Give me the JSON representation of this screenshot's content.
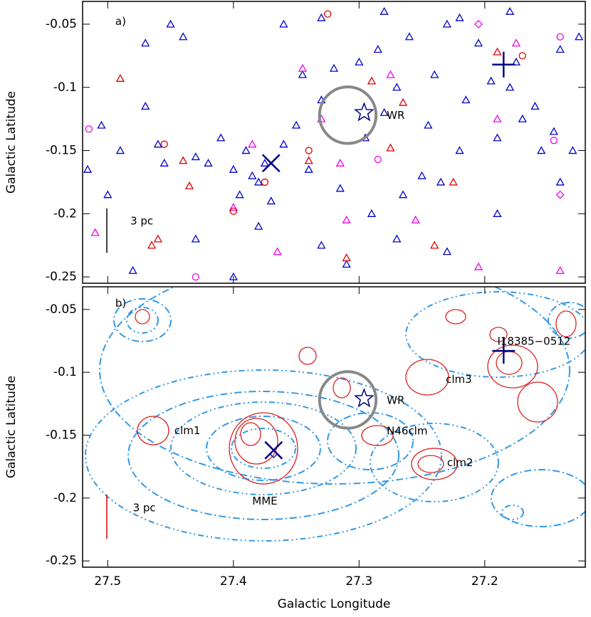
{
  "chart_data": [
    {
      "type": "scatter",
      "ylabel": "Galactic Latitude",
      "xlim": [
        27.52,
        27.12
      ],
      "ylim": [
        -0.255,
        -0.032
      ],
      "xticks": [
        27.5,
        27.4,
        27.3,
        27.2
      ],
      "yticks": [
        -0.05,
        -0.1,
        -0.15,
        -0.2,
        -0.25
      ],
      "series": [
        {
          "marker": "triangle",
          "color": "#0000cc",
          "x": [
            27.516,
            27.505,
            27.49,
            27.47,
            27.47,
            27.46,
            27.455,
            27.45,
            27.44,
            27.43,
            27.42,
            27.41,
            27.4,
            27.395,
            27.39,
            27.385,
            27.38,
            27.375,
            27.37,
            27.36,
            27.35,
            27.345,
            27.34,
            27.33,
            27.32,
            27.315,
            27.3,
            27.295,
            27.29,
            27.285,
            27.28,
            27.27,
            27.265,
            27.26,
            27.25,
            27.245,
            27.24,
            27.235,
            27.23,
            27.22,
            27.215,
            27.205,
            27.195,
            27.19,
            27.18,
            27.175,
            27.17,
            27.16,
            27.155,
            27.145,
            27.14,
            27.13,
            27.125,
            27.5,
            27.48,
            27.43,
            27.4,
            27.38,
            27.33,
            27.31,
            27.27,
            27.23,
            27.19,
            27.14,
            27.36,
            27.33,
            27.28,
            27.22,
            27.18
          ],
          "y": [
            -0.165,
            -0.13,
            -0.15,
            -0.065,
            -0.115,
            -0.145,
            -0.16,
            -0.05,
            -0.06,
            -0.155,
            -0.16,
            -0.14,
            -0.165,
            -0.185,
            -0.15,
            -0.17,
            -0.175,
            -0.16,
            -0.19,
            -0.145,
            -0.13,
            -0.09,
            -0.165,
            -0.11,
            -0.085,
            -0.18,
            -0.08,
            -0.14,
            -0.2,
            -0.07,
            -0.12,
            -0.1,
            -0.185,
            -0.06,
            -0.17,
            -0.13,
            -0.09,
            -0.175,
            -0.05,
            -0.15,
            -0.11,
            -0.065,
            -0.095,
            -0.14,
            -0.1,
            -0.08,
            -0.125,
            -0.115,
            -0.15,
            -0.135,
            -0.07,
            -0.15,
            -0.06,
            -0.185,
            -0.245,
            -0.22,
            -0.25,
            -0.21,
            -0.225,
            -0.24,
            -0.22,
            -0.23,
            -0.2,
            -0.175,
            -0.05,
            -0.045,
            -0.04,
            -0.045,
            -0.04
          ]
        },
        {
          "marker": "triangle",
          "color": "#dd0000",
          "x": [
            27.49,
            27.465,
            27.46,
            27.44,
            27.435,
            27.34,
            27.31,
            27.29,
            27.275,
            27.265,
            27.24,
            27.225,
            27.19
          ],
          "y": [
            -0.093,
            -0.225,
            -0.22,
            -0.158,
            -0.178,
            -0.158,
            -0.235,
            -0.095,
            -0.148,
            -0.112,
            -0.225,
            -0.175,
            -0.072
          ]
        },
        {
          "marker": "triangle",
          "color": "#ee00ee",
          "x": [
            27.51,
            27.4,
            27.385,
            27.365,
            27.345,
            27.33,
            27.315,
            27.31,
            27.275,
            27.255,
            27.205,
            27.19,
            27.175,
            27.14
          ],
          "y": [
            -0.215,
            -0.195,
            -0.145,
            -0.23,
            -0.085,
            -0.125,
            -0.16,
            -0.205,
            -0.09,
            -0.205,
            -0.242,
            -0.125,
            -0.065,
            -0.245
          ]
        },
        {
          "marker": "circle",
          "color": "#dd0000",
          "x": [
            27.455,
            27.4,
            27.375,
            27.34,
            27.325,
            27.17
          ],
          "y": [
            -0.145,
            -0.198,
            -0.175,
            -0.15,
            -0.042,
            -0.075
          ]
        },
        {
          "marker": "circle",
          "color": "#ee00ee",
          "x": [
            27.515,
            27.43,
            27.285,
            27.145,
            27.14
          ],
          "y": [
            -0.133,
            -0.25,
            -0.157,
            -0.142,
            -0.06
          ]
        },
        {
          "marker": "diamond",
          "color": "#ee00ee",
          "x": [
            27.205,
            27.14
          ],
          "y": [
            -0.05,
            -0.185
          ]
        }
      ],
      "markers": [
        {
          "shape": "x",
          "x": 27.37,
          "y": -0.16,
          "color": "#000080"
        },
        {
          "shape": "plus",
          "x": 27.185,
          "y": -0.082,
          "color": "#000080"
        },
        {
          "shape": "star",
          "x": 27.296,
          "y": -0.12,
          "color": "#000080"
        },
        {
          "shape": "ring",
          "x": 27.309,
          "y": -0.122,
          "r": 0.0225,
          "color": "#888888"
        }
      ],
      "annotations": [
        {
          "text": "a)",
          "x": 27.494,
          "y": -0.048,
          "color": "#000080"
        },
        {
          "text": "WR",
          "x": 27.278,
          "y": -0.1225,
          "color": "#000080"
        },
        {
          "text": "3 pc",
          "x": 27.482,
          "y": -0.206,
          "color": "#000000"
        }
      ]
    },
    {
      "type": "contour",
      "xlabel": "Galactic Longitude",
      "ylabel": "Galactic Latitude",
      "xlim": [
        27.52,
        27.12
      ],
      "ylim": [
        -0.255,
        -0.032
      ],
      "xticks": [
        27.5,
        27.4,
        27.3,
        27.2
      ],
      "yticks": [
        -0.05,
        -0.1,
        -0.15,
        -0.2,
        -0.25
      ],
      "markers": [
        {
          "shape": "x",
          "x": 27.368,
          "y": -0.162,
          "color": "#000080"
        },
        {
          "shape": "diamond",
          "x": 27.368,
          "y": -0.165,
          "color": "#000080"
        },
        {
          "shape": "plus",
          "x": 27.185,
          "y": -0.083,
          "color": "#000080"
        },
        {
          "shape": "star",
          "x": 27.296,
          "y": -0.121,
          "color": "#000080"
        },
        {
          "shape": "ring",
          "x": 27.309,
          "y": -0.122,
          "r": 0.0225,
          "color": "#888888"
        }
      ],
      "annotations": [
        {
          "text": "b)",
          "x": 27.494,
          "y": -0.0454,
          "color": "#000080"
        },
        {
          "text": "WR",
          "x": 27.278,
          "y": -0.1226,
          "color": "#000080"
        },
        {
          "text": "clm1",
          "x": 27.447,
          "y": -0.1466,
          "color": "#000080"
        },
        {
          "text": "MME",
          "x": 27.385,
          "y": -0.2026,
          "color": "#000080"
        },
        {
          "text": "N46clm",
          "x": 27.278,
          "y": -0.147,
          "color": "#000080"
        },
        {
          "text": "clm2",
          "x": 27.23,
          "y": -0.172,
          "color": "#000080"
        },
        {
          "text": "clm3",
          "x": 27.231,
          "y": -0.106,
          "color": "#000080"
        },
        {
          "text": "I18385−0512",
          "x": 27.19,
          "y": -0.0757,
          "color": "#000080"
        },
        {
          "text": "3 pc",
          "x": 27.48,
          "y": -0.208,
          "color": "#dd0000"
        }
      ]
    }
  ]
}
